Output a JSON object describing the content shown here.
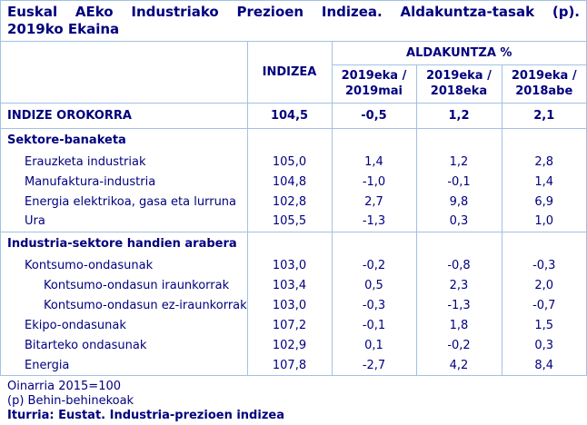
{
  "title": {
    "line1": "Euskal AEko Industriako Prezioen Indizea. Aldakuntza-tasak (p).",
    "line2": "2019ko Ekaina"
  },
  "header": {
    "index_col": "INDIZEA",
    "change_group": "ALDAKUNTZA %",
    "periods": [
      {
        "line1": "2019eka /",
        "line2": "2019mai"
      },
      {
        "line1": "2019eka /",
        "line2": "2018eka"
      },
      {
        "line1": "2019eka /",
        "line2": "2018abe"
      }
    ]
  },
  "table": {
    "rows": [
      {
        "label": "INDIZE OROKORRA",
        "index": "104,5",
        "vs_prev_month": "-0,5",
        "vs_prev_year": "1,2",
        "vs_prev_dec": "2,1"
      },
      {
        "label": "Sektore-banaketa",
        "index": "",
        "vs_prev_month": "",
        "vs_prev_year": "",
        "vs_prev_dec": ""
      },
      {
        "label": "Erauzketa industriak",
        "index": "105,0",
        "vs_prev_month": "1,4",
        "vs_prev_year": "1,2",
        "vs_prev_dec": "2,8"
      },
      {
        "label": "Manufaktura-industria",
        "index": "104,8",
        "vs_prev_month": "-1,0",
        "vs_prev_year": "-0,1",
        "vs_prev_dec": "1,4"
      },
      {
        "label": "Energia elektrikoa, gasa eta lurruna",
        "index": "102,8",
        "vs_prev_month": "2,7",
        "vs_prev_year": "9,8",
        "vs_prev_dec": "6,9"
      },
      {
        "label": "Ura",
        "index": "105,5",
        "vs_prev_month": "-1,3",
        "vs_prev_year": "0,3",
        "vs_prev_dec": "1,0"
      },
      {
        "label": "Industria-sektore handien arabera",
        "index": "",
        "vs_prev_month": "",
        "vs_prev_year": "",
        "vs_prev_dec": ""
      },
      {
        "label": "Kontsumo-ondasunak",
        "index": "103,0",
        "vs_prev_month": "-0,2",
        "vs_prev_year": "-0,8",
        "vs_prev_dec": "-0,3"
      },
      {
        "label": "Kontsumo-ondasun iraunkorrak",
        "index": "103,4",
        "vs_prev_month": "0,5",
        "vs_prev_year": "2,3",
        "vs_prev_dec": "2,0"
      },
      {
        "label": "Kontsumo-ondasun ez-iraunkorrak",
        "index": "103,0",
        "vs_prev_month": "-0,3",
        "vs_prev_year": "-1,3",
        "vs_prev_dec": "-0,7"
      },
      {
        "label": "Ekipo-ondasunak",
        "index": "107,2",
        "vs_prev_month": "-0,1",
        "vs_prev_year": "1,8",
        "vs_prev_dec": "1,5"
      },
      {
        "label": "Bitarteko ondasunak",
        "index": "102,9",
        "vs_prev_month": "0,1",
        "vs_prev_year": "-0,2",
        "vs_prev_dec": "0,3"
      },
      {
        "label": "Energia",
        "index": "107,8",
        "vs_prev_month": "-2,7",
        "vs_prev_year": "4,2",
        "vs_prev_dec": "8,4"
      }
    ]
  },
  "footer": {
    "base_note": "Oinarria 2015=100",
    "provisional_note": "(p) Behin-behinekoak",
    "source": "Iturria: Eustat. Industria-prezioen indizea"
  },
  "colors": {
    "text": "#00007e",
    "border": "#a3c1e4",
    "background": "#ffffff"
  }
}
